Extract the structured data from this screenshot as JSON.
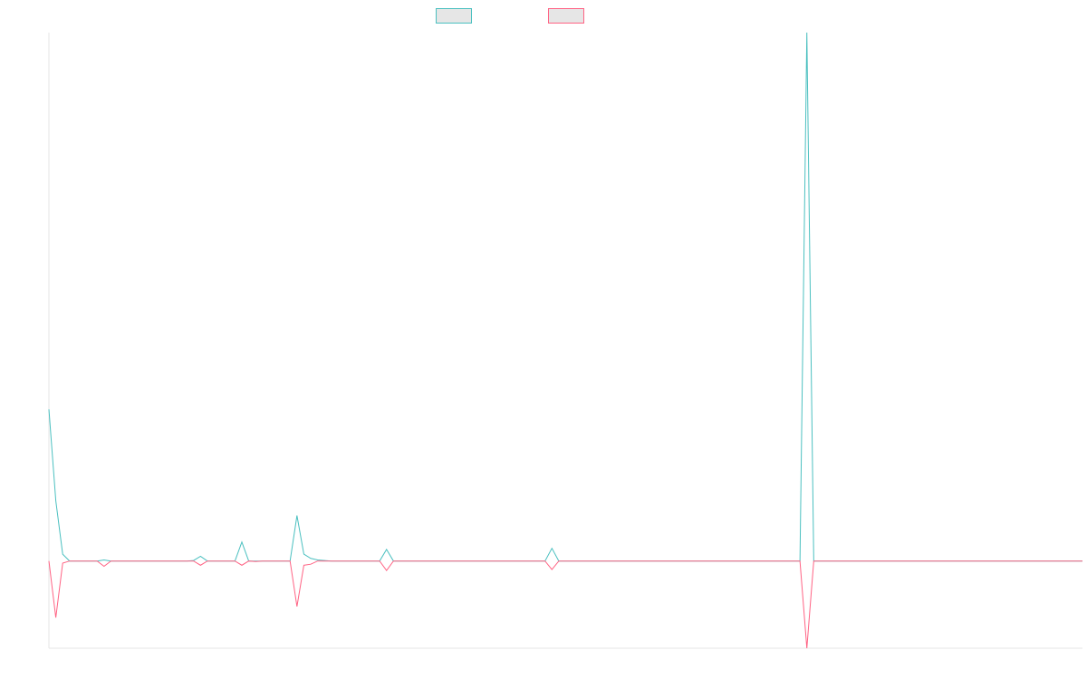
{
  "chart_data": {
    "type": "line",
    "title": "",
    "xlabel": "",
    "ylabel": "",
    "legend_position": "top-center",
    "grid": false,
    "x": [
      0,
      1,
      2,
      3,
      4,
      5,
      6,
      7,
      8,
      9,
      10,
      11,
      12,
      13,
      14,
      15,
      16,
      17,
      18,
      19,
      20,
      21,
      22,
      23,
      24,
      25,
      26,
      27,
      28,
      29,
      30,
      31,
      32,
      33,
      34,
      35,
      36,
      37,
      38,
      39,
      40,
      41,
      42,
      43,
      44,
      45,
      46,
      47,
      48,
      49,
      50,
      51,
      52,
      53,
      54,
      55,
      56,
      57,
      58,
      59,
      60,
      61,
      62,
      63,
      64,
      65,
      66,
      67,
      68,
      69,
      70,
      71,
      72,
      73,
      74,
      75,
      76,
      77,
      78,
      79,
      80,
      81,
      82,
      83,
      84,
      85,
      86,
      87,
      88,
      89,
      90,
      91,
      92,
      93,
      94,
      95,
      96,
      97,
      98,
      99,
      100,
      101,
      102,
      103,
      104,
      105,
      106,
      107,
      108,
      109,
      110,
      111,
      112,
      113,
      114,
      115,
      116,
      117,
      118,
      119,
      120,
      121,
      122,
      123,
      124,
      125,
      126,
      127,
      128,
      129,
      130,
      131,
      132,
      133,
      134,
      135,
      136,
      137,
      138,
      139,
      140,
      141,
      142,
      143,
      144,
      145,
      146,
      147,
      148,
      149,
      150
    ],
    "xlim": [
      0,
      150
    ],
    "ylim": [
      -165,
      1000
    ],
    "series": [
      {
        "name": "",
        "color": "#4bc0c0",
        "values": [
          287,
          114,
          13,
          0,
          0,
          0,
          0,
          0,
          2,
          0,
          0,
          0,
          0,
          0,
          0,
          0,
          0,
          0,
          0,
          0,
          0,
          1,
          9,
          0,
          0,
          0,
          0,
          0,
          36,
          0,
          0,
          0,
          0,
          0,
          0,
          0,
          86,
          13,
          5,
          2,
          1,
          0,
          0,
          0,
          0,
          0,
          0,
          0,
          0,
          22,
          0,
          0,
          0,
          0,
          0,
          0,
          0,
          0,
          0,
          0,
          0,
          0,
          0,
          0,
          0,
          0,
          0,
          0,
          0,
          0,
          0,
          0,
          0,
          24,
          0,
          0,
          0,
          0,
          0,
          0,
          0,
          0,
          0,
          0,
          0,
          0,
          0,
          0,
          0,
          0,
          0,
          0,
          0,
          0,
          0,
          0,
          0,
          0,
          0,
          0,
          0,
          0,
          0,
          0,
          0,
          0,
          0,
          0,
          0,
          0,
          1000,
          0,
          0,
          0,
          0,
          0,
          0,
          0,
          0,
          0,
          0,
          0,
          0,
          0,
          0,
          0,
          0,
          0,
          0,
          0,
          0,
          0,
          0,
          0,
          0,
          0,
          0,
          0,
          0,
          0,
          0,
          0,
          0,
          0,
          0,
          0,
          0,
          0,
          0,
          0,
          0
        ]
      },
      {
        "name": "",
        "color": "#ff6384",
        "values": [
          0,
          -107,
          -4,
          0,
          0,
          0,
          0,
          0,
          -10,
          0,
          0,
          0,
          0,
          0,
          0,
          0,
          0,
          0,
          0,
          0,
          0,
          0,
          -8,
          0,
          0,
          0,
          0,
          0,
          -8,
          0,
          -1,
          0,
          0,
          0,
          0,
          0,
          -86,
          -8,
          -6,
          0,
          0,
          0,
          0,
          0,
          0,
          0,
          0,
          0,
          0,
          -18,
          0,
          0,
          0,
          0,
          0,
          0,
          0,
          0,
          0,
          0,
          0,
          0,
          0,
          0,
          0,
          0,
          0,
          0,
          0,
          0,
          0,
          0,
          0,
          -16,
          0,
          0,
          0,
          0,
          0,
          0,
          0,
          0,
          0,
          0,
          0,
          0,
          0,
          0,
          0,
          0,
          0,
          0,
          0,
          0,
          0,
          0,
          0,
          0,
          0,
          0,
          0,
          0,
          0,
          0,
          0,
          0,
          0,
          0,
          0,
          0,
          -165,
          0,
          0,
          0,
          0,
          0,
          0,
          0,
          0,
          0,
          0,
          0,
          0,
          0,
          0,
          0,
          0,
          0,
          0,
          0,
          0,
          0,
          0,
          0,
          0,
          0,
          0,
          0,
          0,
          0,
          0,
          0,
          0,
          0,
          0,
          0,
          0,
          0,
          0,
          0,
          0
        ]
      }
    ]
  }
}
